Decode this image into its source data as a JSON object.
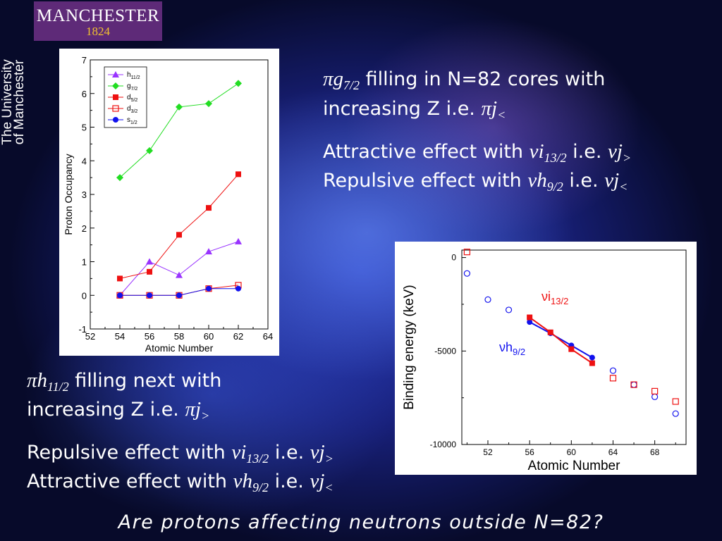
{
  "logo": {
    "name": "MANCHESTER",
    "year": "1824"
  },
  "vertical_label": [
    "The University",
    "of Manchester"
  ],
  "text_top": {
    "line1_symbol": "πg",
    "line1_sub": "7/2",
    "line1_rest": " filling in N=82 cores with",
    "line2_rest": "increasing Z i.e. ",
    "line2_symbol": "πj",
    "line2_sub": "<",
    "line3_rest": "Attractive effect with ",
    "line3_symbol": "νi",
    "line3_sub": "13/2",
    "line3_ie": " i.e. ",
    "line3_symbol2": "νj",
    "line3_sub2": ">",
    "line4_rest": "Repulsive effect with ",
    "line4_symbol": "νh",
    "line4_sub": "9/2",
    "line4_ie": " i.e. ",
    "line4_symbol2": "νj",
    "line4_sub2": "<"
  },
  "text_bottom": {
    "line1_symbol": "πh",
    "line1_sub": "11/2",
    "line1_rest": " filling next with",
    "line2_rest": "increasing Z i.e. ",
    "line2_symbol": "πj",
    "line2_sub": ">",
    "line3_rest": "Repulsive effect with ",
    "line3_symbol": "νi",
    "line3_sub": "13/2",
    "line3_ie": " i.e. ",
    "line3_symbol2": "νj",
    "line3_sub2": ">",
    "line4_rest": "Attractive effect with ",
    "line4_symbol": "νh",
    "line4_sub": "9/2",
    "line4_ie": " i.e. ",
    "line4_symbol2": "νj",
    "line4_sub2": "<"
  },
  "question": "Are protons affecting neutrons outside N=82?",
  "chart_data": [
    {
      "type": "line",
      "xlabel": "Atomic Number",
      "ylabel": "Proton Occupancy",
      "xlim": [
        52,
        64
      ],
      "ylim": [
        -1,
        7
      ],
      "xticks": [
        "52",
        "54",
        "56",
        "58",
        "60",
        "62",
        "64"
      ],
      "yticks": [
        "-1",
        "0",
        "1",
        "2",
        "3",
        "4",
        "5",
        "6",
        "7"
      ],
      "legend_position": "top-left",
      "x": [
        54,
        56,
        58,
        60,
        62
      ],
      "series": [
        {
          "name": "h11/2",
          "main": "h",
          "sub": "11/2",
          "color": "#9933ff",
          "marker": "triangle",
          "values": [
            0.0,
            1.0,
            0.6,
            1.3,
            1.6
          ]
        },
        {
          "name": "g7/2",
          "main": "g",
          "sub": "7/2",
          "color": "#22dd22",
          "marker": "diamond",
          "values": [
            3.5,
            4.3,
            5.6,
            5.7,
            6.3
          ]
        },
        {
          "name": "d5/2",
          "main": "d",
          "sub": "5/2",
          "color": "#ee1111",
          "marker": "square",
          "values": [
            0.5,
            0.7,
            1.8,
            2.6,
            3.6
          ]
        },
        {
          "name": "d3/2",
          "main": "d",
          "sub": "3/2",
          "color": "#ee1111",
          "marker": "open-square",
          "values": [
            0.0,
            0.0,
            0.0,
            0.2,
            0.3
          ]
        },
        {
          "name": "s1/2",
          "main": "s",
          "sub": "1/2",
          "color": "#1111ee",
          "marker": "circle",
          "values": [
            0.0,
            0.0,
            0.0,
            0.2,
            0.2
          ]
        }
      ]
    },
    {
      "type": "scatter",
      "xlabel": "Atomic Number",
      "ylabel": "Binding energy (keV)",
      "xlim": [
        49.5,
        71
      ],
      "ylim": [
        -10000,
        400
      ],
      "xticks": [
        "52",
        "56",
        "60",
        "64",
        "68"
      ],
      "yticks": [
        "0",
        "-5000",
        "-10000"
      ],
      "annotations": [
        {
          "main": "νi",
          "sub": "13/2",
          "color": "#ee1111"
        },
        {
          "main": "νh",
          "sub": "9/2",
          "color": "#1111ee"
        }
      ],
      "series": [
        {
          "name": "blue circles",
          "color": "#1111ee",
          "marker": "open-circle",
          "x": [
            50,
            52,
            54,
            64,
            66,
            68,
            70
          ],
          "values": [
            -850,
            -2250,
            -2800,
            -6050,
            -6800,
            -7450,
            -8350
          ]
        },
        {
          "name": "red squares",
          "color": "#ee1111",
          "marker": "open-square",
          "x": [
            50,
            64,
            66,
            68,
            70
          ],
          "values": [
            300,
            -6450,
            -6800,
            -7150,
            -7700
          ]
        },
        {
          "name": "νh9/2 line",
          "color": "#1111ee",
          "marker": "filled-circle",
          "line": true,
          "x": [
            56,
            58,
            60,
            62
          ],
          "values": [
            -3450,
            -4050,
            -4700,
            -5350
          ]
        },
        {
          "name": "νi13/2 line",
          "color": "#ee1111",
          "marker": "filled-square",
          "line": true,
          "x": [
            56,
            58,
            60,
            62
          ],
          "values": [
            -3200,
            -4000,
            -4900,
            -5650
          ]
        }
      ]
    }
  ]
}
